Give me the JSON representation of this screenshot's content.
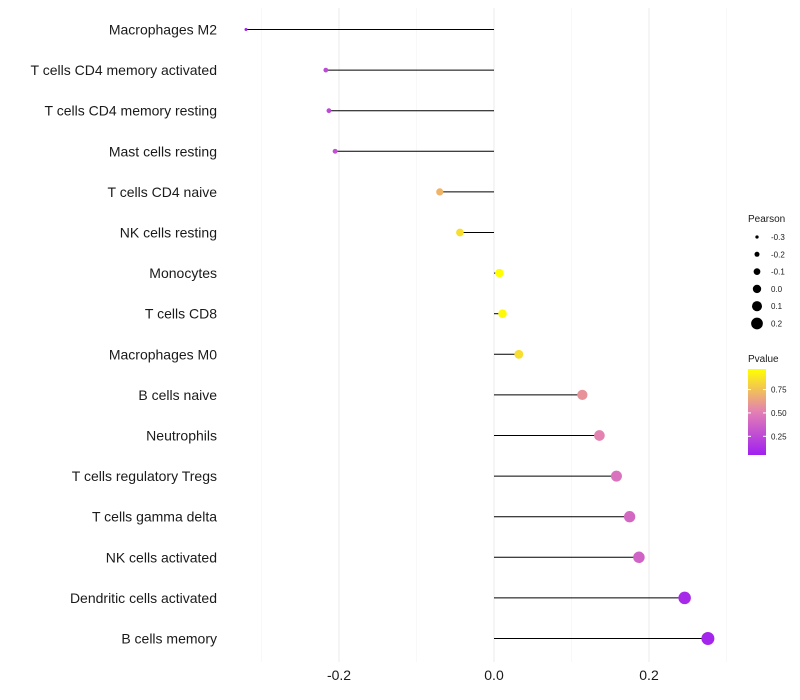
{
  "chart_data": {
    "type": "lollipop",
    "title": "",
    "xlabel": "",
    "ylabel": "",
    "xlim": [
      -0.33,
      0.3
    ],
    "x_ticks": [
      -0.2,
      0.0,
      0.2
    ],
    "x_tick_labels": [
      "-0.2",
      "0.0",
      "0.2"
    ],
    "grid": true,
    "categories": [
      "Macrophages M2",
      "T cells CD4 memory activated",
      "T cells CD4 memory resting",
      "Mast cells resting",
      "T cells CD4 naive",
      "NK cells resting",
      "Monocytes",
      "T cells CD8",
      "Macrophages M0",
      "B cells naive",
      "Neutrophils",
      "T cells regulatory  Tregs",
      "T cells gamma delta",
      "NK cells activated",
      "Dendritic cells activated",
      "B cells memory"
    ],
    "pearson": [
      -0.32,
      -0.217,
      -0.213,
      -0.205,
      -0.07,
      -0.044,
      0.007,
      0.011,
      0.032,
      0.114,
      0.136,
      0.158,
      0.175,
      0.187,
      0.246,
      0.276
    ],
    "pvalue": [
      0.05,
      0.25,
      0.25,
      0.28,
      0.7,
      0.85,
      0.97,
      0.95,
      0.85,
      0.58,
      0.52,
      0.45,
      0.4,
      0.38,
      0.1,
      0.08
    ],
    "size_legend": {
      "title": "Pearson",
      "values": [
        -0.3,
        -0.2,
        -0.1,
        0.0,
        0.1,
        0.2
      ],
      "labels": [
        "-0.3",
        "-0.2",
        "-0.1",
        "0.0",
        "0.1",
        "0.2"
      ]
    },
    "color_legend": {
      "title": "Pvalue",
      "ticks": [
        0.25,
        0.5,
        0.75
      ],
      "tick_labels": [
        "0.25",
        "0.50",
        "0.75"
      ],
      "range": [
        0.05,
        0.97
      ],
      "low_color": "#a020f0",
      "high_color": "#ffff00"
    },
    "segment_color": "#000000",
    "grid_color": "#ebebeb"
  }
}
